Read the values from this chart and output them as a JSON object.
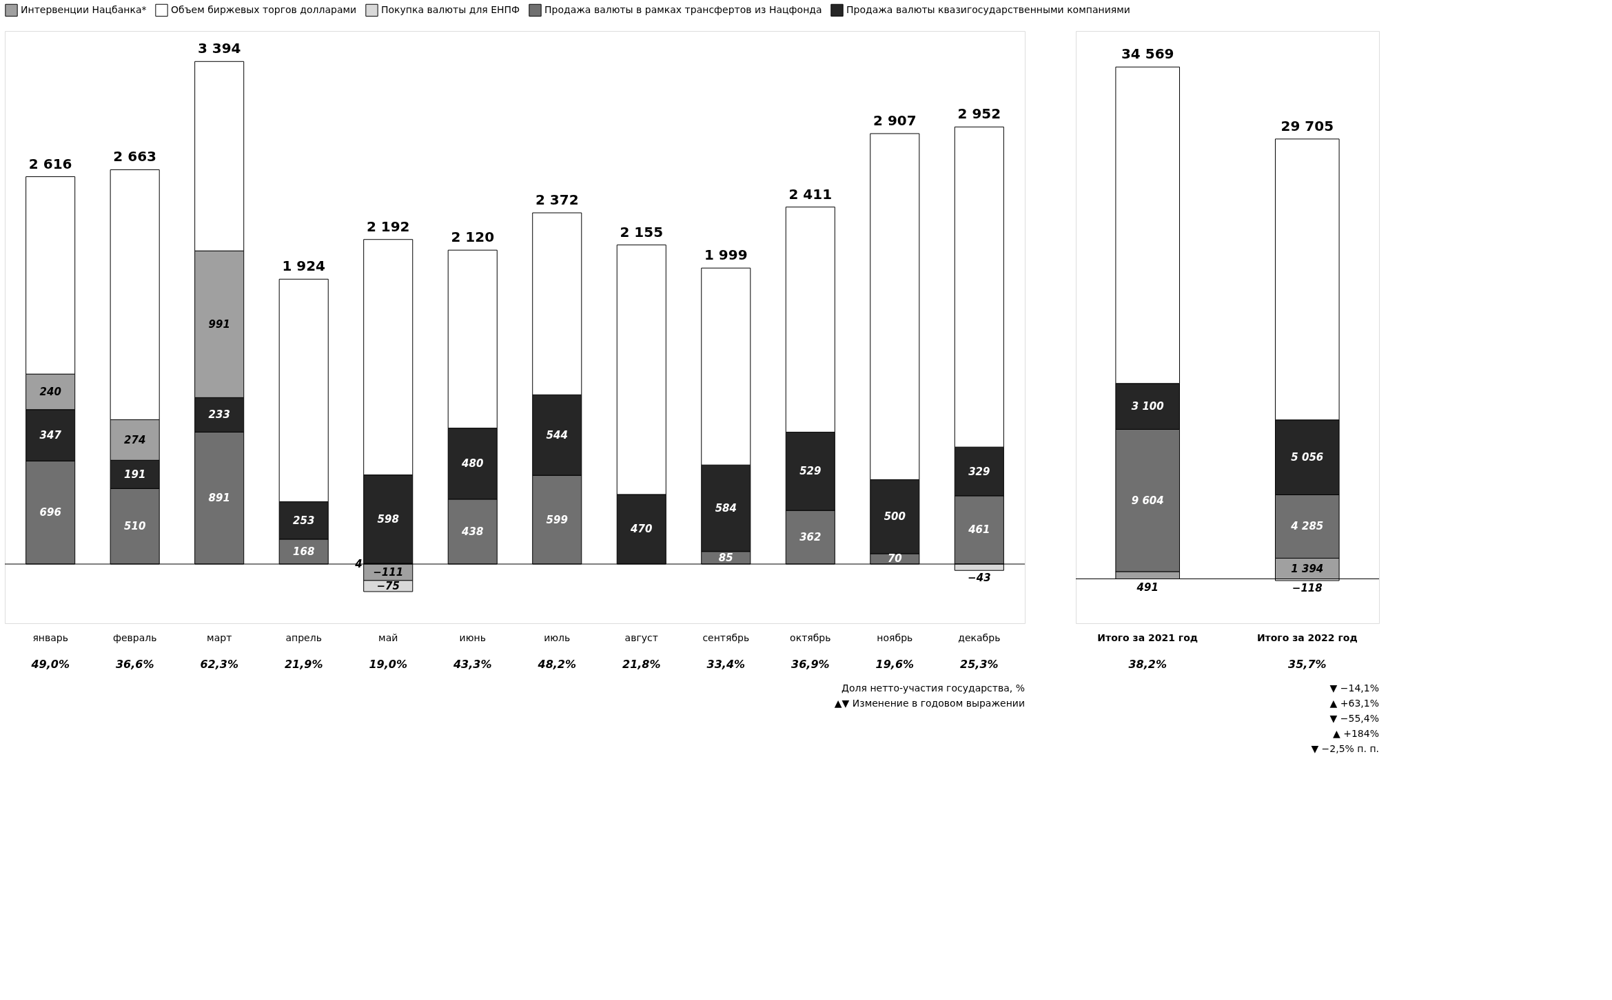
{
  "chart_data": [
    {
      "type": "bar",
      "stacked": true,
      "legend": "top",
      "tick_labels": "x",
      "ylim": [
        -400,
        3600
      ],
      "categories": [
        "январь",
        "февраль",
        "март",
        "апрель",
        "май",
        "июнь",
        "июль",
        "август",
        "сентябрь",
        "октябрь",
        "ноябрь",
        "декабрь"
      ],
      "series": [
        {
          "name": "Продажа валюты в рамках трансфертов из Нацфонда",
          "color": "#707070",
          "values": [
            696,
            510,
            891,
            168,
            4,
            438,
            599,
            null,
            85,
            362,
            70,
            461
          ],
          "value_labels": [
            "696",
            "510",
            "891",
            "168",
            "4",
            "438",
            "599",
            null,
            "85",
            "362",
            "70",
            "461"
          ]
        },
        {
          "name": "Продажа валюты квазигосударственными компаниями",
          "color": "#262626",
          "values": [
            347,
            191,
            233,
            253,
            598,
            480,
            544,
            470,
            584,
            529,
            500,
            329
          ],
          "value_labels": [
            "347",
            "191",
            "233",
            "253",
            "598",
            "480",
            "544",
            "470",
            "584",
            "529",
            "500",
            "329"
          ]
        },
        {
          "name": "Интервенции Нацбанка*",
          "color": "#a0a0a0",
          "values": [
            240,
            274,
            991,
            null,
            -111,
            null,
            null,
            null,
            null,
            null,
            null,
            null
          ],
          "value_labels": [
            "240",
            "274",
            "991",
            null,
            "−111",
            null,
            null,
            null,
            null,
            null,
            null,
            null
          ]
        },
        {
          "name": "Покупка валюты для ЕНПФ",
          "color": "#d9d9d9",
          "values": [
            null,
            null,
            null,
            null,
            -75,
            null,
            null,
            null,
            null,
            null,
            null,
            -43
          ],
          "value_labels": [
            null,
            null,
            null,
            null,
            "−75",
            null,
            null,
            null,
            null,
            null,
            null,
            "−43"
          ]
        },
        {
          "name": "Объем биржевых торгов долларами",
          "color": "#ffffff",
          "values": [
            1333,
            1688,
            1279,
            1503,
            1590,
            1202,
            1229,
            1685,
            1330,
            1520,
            2337,
            2162
          ]
        }
      ],
      "ref_lines": [
        {
          "axis": "y",
          "value": 0
        }
      ],
      "annotations": [
        {
          "text": "2 616",
          "x": "январь",
          "y": 2616
        },
        {
          "text": "2 663",
          "x": "февраль",
          "y": 2663
        },
        {
          "text": "3 394",
          "x": "март",
          "y": 3394
        },
        {
          "text": "1 924",
          "x": "апрель",
          "y": 1924
        },
        {
          "text": "2 192",
          "x": "май",
          "y": 2192
        },
        {
          "text": "2 120",
          "x": "июнь",
          "y": 2120
        },
        {
          "text": "2 372",
          "x": "июль",
          "y": 2372
        },
        {
          "text": "2 155",
          "x": "август",
          "y": 2155
        },
        {
          "text": "1 999",
          "x": "сентябрь",
          "y": 1999
        },
        {
          "text": "2 411",
          "x": "октябрь",
          "y": 2411
        },
        {
          "text": "2 907",
          "x": "ноябрь",
          "y": 2907
        },
        {
          "text": "2 952",
          "x": "декабрь",
          "y": 2952
        },
        "49,0%",
        "36,6%",
        "62,3%",
        "21,9%",
        "19,0%",
        "43,3%",
        "48,2%",
        "21,8%",
        "33,4%",
        "36,9%",
        "19,6%",
        "25,3%",
        "Доля нетто-участия государства, %",
        "▲▼ Изменение в годовом выражении"
      ]
    },
    {
      "type": "bar",
      "stacked": true,
      "legend": "top",
      "tick_labels": "x",
      "ylim": [
        -3000,
        37000
      ],
      "categories": [
        "Итого за 2021 год",
        "Итого за 2022 год"
      ],
      "series": [
        {
          "name": "Интервенции Нацбанка*",
          "color": "#a0a0a0",
          "values": [
            491,
            1394
          ],
          "value_labels": [
            "491",
            "1 394"
          ]
        },
        {
          "name": "Продажа валюты в рамках трансфертов из Нацфонда",
          "color": "#707070",
          "values": [
            9604,
            4285
          ],
          "value_labels": [
            "9 604",
            "4 285"
          ]
        },
        {
          "name": "Продажа валюты квазигосударственными компаниями",
          "color": "#262626",
          "values": [
            3100,
            5056
          ],
          "value_labels": [
            "3 100",
            "5 056"
          ]
        },
        {
          "name": "Покупка валюты для ЕНПФ",
          "color": "#d9d9d9",
          "values": [
            null,
            -118
          ],
          "value_labels": [
            null,
            "−118"
          ]
        },
        {
          "name": "Объем биржевых торгов долларами",
          "color": "#ffffff",
          "values": [
            21374,
            18970
          ]
        }
      ],
      "ref_lines": [
        {
          "axis": "y",
          "value": 0
        }
      ],
      "annotations": [
        {
          "text": "34 569",
          "x": "Итого за 2021 год",
          "y": 34569
        },
        {
          "text": "29 705",
          "x": "Итого за 2022 год",
          "y": 29705
        },
        "38,2%",
        "35,7%",
        "▼ −14,1%",
        "▲ +63,1%",
        "▼ −55,4%",
        "▲ +184%",
        "▼ −2,5% п. п."
      ]
    }
  ]
}
